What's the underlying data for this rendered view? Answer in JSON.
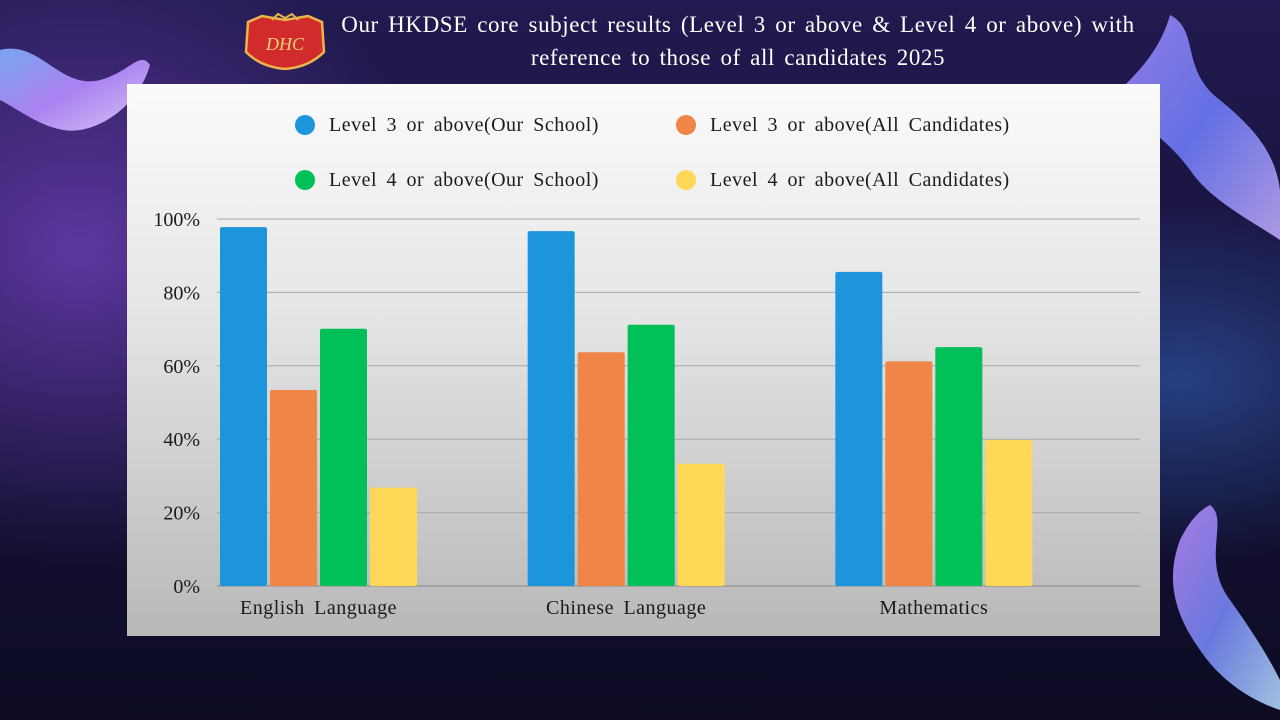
{
  "header": {
    "title": "Our HKDSE core subject results (Level 3 or above & Level 4 or above) with reference to those of all candidates 2025",
    "logo_text": "DHC",
    "logo_icon": "school-crest-icon"
  },
  "chart_data": {
    "type": "bar",
    "title": "",
    "xlabel": "",
    "ylabel": "",
    "categories": [
      "English Language",
      "Chinese Language",
      "Mathematics"
    ],
    "series": [
      {
        "name": "Level 3 or above(Our School)",
        "values": [
          97.8,
          96.7,
          85.6
        ],
        "color": "#1d95dd"
      },
      {
        "name": "Level 3 or above(All Candidates)",
        "values": [
          53.4,
          63.7,
          61.2
        ],
        "color": "#ef8547"
      },
      {
        "name": "Level 4 or above(Our School)",
        "values": [
          70.1,
          71.2,
          65.1
        ],
        "color": "#00c057"
      },
      {
        "name": "Level 4 or above(All Candidates)",
        "values": [
          26.8,
          33.3,
          39.8
        ],
        "color": "#fed856"
      }
    ],
    "ylim": [
      0,
      100
    ],
    "yticks": [
      "0%",
      "20%",
      "40%",
      "60%",
      "80%",
      "100%"
    ],
    "grid": true,
    "legend_placement": "top"
  }
}
